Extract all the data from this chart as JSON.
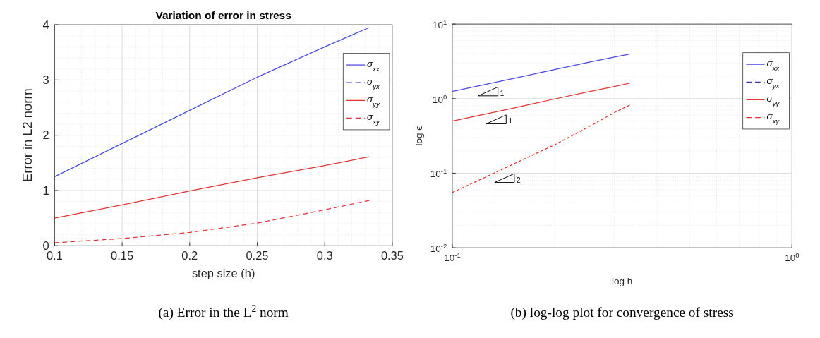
{
  "chart_data": [
    {
      "type": "line",
      "title": "Variation of error in stress",
      "xlabel": "step size (h)",
      "ylabel": "Error in L2 norm",
      "x": [
        0.1,
        0.15,
        0.2,
        0.25,
        0.3,
        0.333
      ],
      "series": [
        {
          "name": "σ$_{xx}$",
          "color": "#4a4ae0",
          "line_style": "solid",
          "values": [
            1.25,
            1.85,
            2.45,
            3.05,
            3.6,
            3.95
          ]
        },
        {
          "name": "σ$_{yx}$",
          "color": "#3a3ab0",
          "line_style": "dashed",
          "values": [
            null,
            null,
            null,
            null,
            null,
            null
          ]
        },
        {
          "name": "σ$_{yy}$",
          "color": "#e03535",
          "line_style": "solid",
          "values": [
            0.5,
            0.74,
            0.99,
            1.23,
            1.45,
            1.61
          ]
        },
        {
          "name": "σ$_{xy}$",
          "color": "#e03535",
          "line_style": "dashed",
          "values": [
            0.055,
            0.13,
            0.24,
            0.41,
            0.65,
            0.82
          ]
        }
      ],
      "xlim": [
        0.1,
        0.35
      ],
      "xticks": [
        0.1,
        0.15,
        0.2,
        0.25,
        0.3,
        0.35
      ],
      "ylim": [
        0,
        4
      ],
      "yticks": [
        0,
        1,
        2,
        3,
        4
      ],
      "grid": true,
      "legend": "top right",
      "marker": "none",
      "annotations": [
        "(a) Error in the L$^{2}$ norm"
      ]
    },
    {
      "type": "line",
      "xlabel": "log h",
      "ylabel": "log ϵ",
      "log": "xy",
      "x": [
        0.1,
        0.15,
        0.2,
        0.25,
        0.3,
        0.333
      ],
      "series": [
        {
          "name": "σ$_{xx}$",
          "color": "#4a4ae0",
          "line_style": "solid",
          "values": [
            1.25,
            1.85,
            2.45,
            3.05,
            3.6,
            3.95
          ]
        },
        {
          "name": "σ$_{yx}$",
          "color": "#3a3ab0",
          "line_style": "dashed",
          "values": [
            null,
            null,
            null,
            null,
            null,
            null
          ]
        },
        {
          "name": "σ$_{yy}$",
          "color": "#e03535",
          "line_style": "solid",
          "values": [
            0.5,
            0.74,
            0.99,
            1.23,
            1.45,
            1.61
          ]
        },
        {
          "name": "σ$_{xy}$",
          "color": "#e03535",
          "line_style": "dashed",
          "values": [
            0.055,
            0.13,
            0.24,
            0.41,
            0.65,
            0.82
          ]
        }
      ],
      "xlim": [
        0.1,
        1
      ],
      "xticks": [
        {
          "value": 0.1,
          "label": "10$^{-1}$"
        },
        {
          "value": 1,
          "label": "10$^{0}$"
        }
      ],
      "ylim": [
        0.01,
        10
      ],
      "yticks": [
        {
          "value": 0.01,
          "label": "10$^{-2}$"
        },
        {
          "value": 0.1,
          "label": "10$^{-1}$"
        },
        {
          "value": 1,
          "label": "10$^{0}$"
        },
        {
          "value": 10,
          "label": "10$^{1}$"
        }
      ],
      "grid": true,
      "legend": "top right",
      "marker": "none",
      "annotations": [
        "(b) log-log plot for convergence of stress",
        "1",
        "1",
        "2"
      ]
    }
  ]
}
